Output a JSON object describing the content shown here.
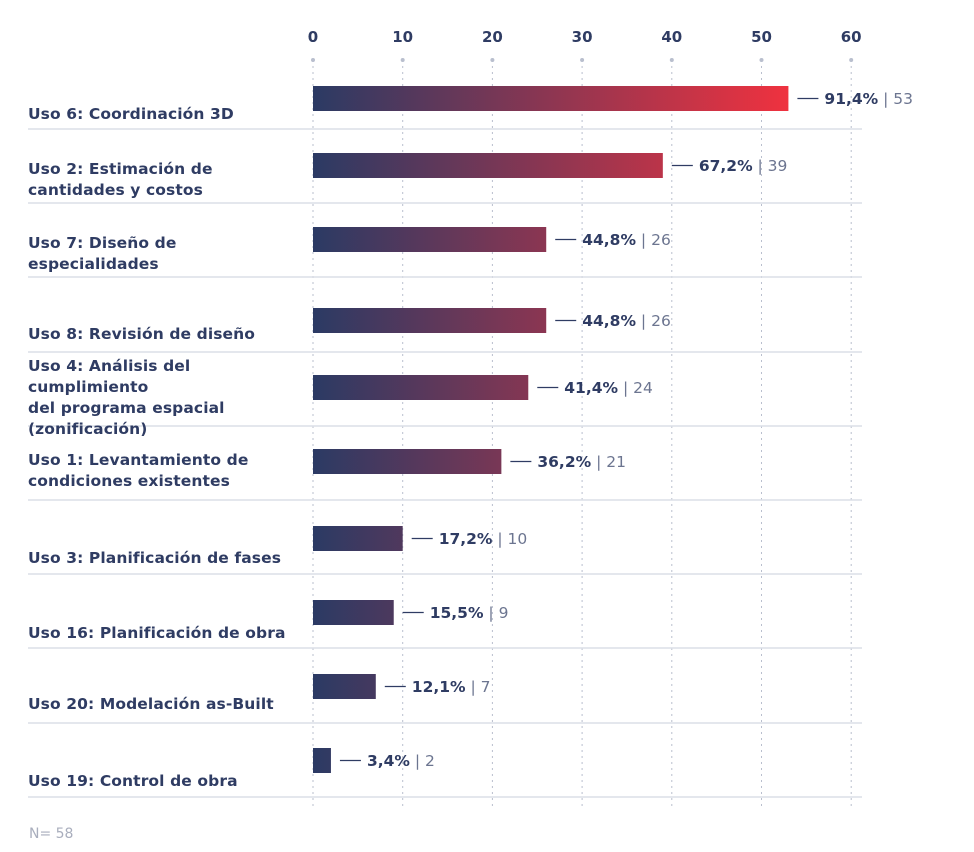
{
  "chart_data": {
    "type": "bar",
    "orientation": "horizontal",
    "x_ticks": [
      "0",
      "10",
      "20",
      "30",
      "40",
      "50",
      "60"
    ],
    "xlim": [
      0,
      60
    ],
    "grid": "vertical dotted",
    "colors": {
      "start": "#2b3a64",
      "end": "#f0323f",
      "text": "#2f3c63"
    },
    "categories": [
      "Uso 6: Coordinación 3D",
      "Uso 2: Estimación de\ncantidades y costos",
      "Uso 7: Diseño de\nespecialidades",
      "Uso 8: Revisión de diseño",
      "Uso 4: Análisis del cumplimiento\ndel programa espacial\n(zonificación)",
      "Uso 1: Levantamiento de\ncondiciones existentes",
      "Uso 3: Planificación de fases",
      "Uso 16: Planificación de obra",
      "Uso 20: Modelación as-Built",
      "Uso 19: Control de obra"
    ],
    "values": [
      53,
      39,
      26,
      26,
      24,
      21,
      10,
      9,
      7,
      2
    ],
    "percent_labels": [
      "91,4%",
      "67,2%",
      "44,8%",
      "44,8%",
      "41,4%",
      "36,2%",
      "17,2%",
      "15,5%",
      "12,1%",
      "3,4%"
    ],
    "count_labels": [
      "| 53",
      "| 39",
      "| 26",
      "| 26",
      "| 24",
      "| 21",
      "| 10",
      "| 9",
      "| 7",
      "| 2"
    ]
  },
  "footnote": "N= 58"
}
